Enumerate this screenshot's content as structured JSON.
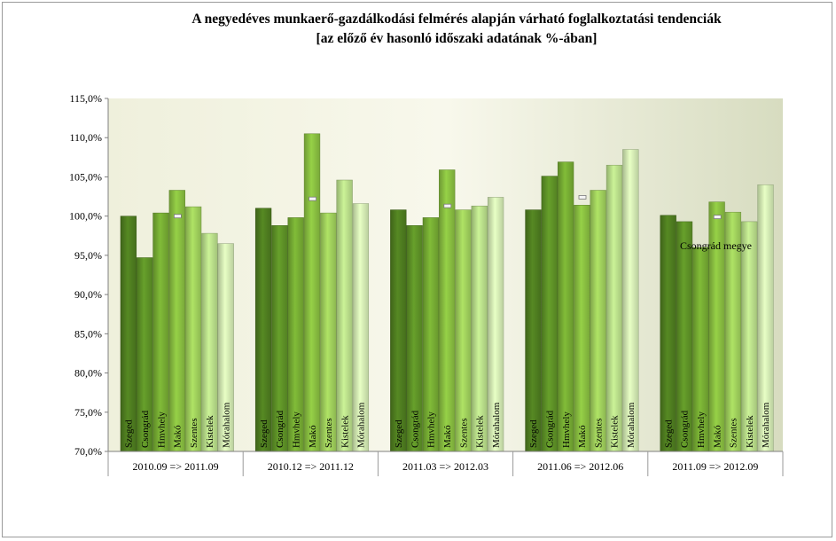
{
  "chart_data": {
    "type": "bar",
    "title_line1": "A negyedéves munkaerő-gazdálkodási felmérés alapján várható foglalkoztatási tendenciák",
    "title_line2": "[az előző év hasonló időszaki adatának %-ában]",
    "series_names": [
      "Szeged",
      "Csongrád",
      "Hmvhely",
      "Makó",
      "Szentes",
      "Kistelek",
      "Mórahalom"
    ],
    "groups": [
      "2010.09 => 2011.09",
      "2010.12 => 2011.12",
      "2011.03 => 2012.03",
      "2011.06 => 2012.06",
      "2011.09 => 2012.09"
    ],
    "values": [
      [
        100.0,
        94.7,
        100.4,
        103.3,
        101.2,
        97.8,
        96.5
      ],
      [
        101.0,
        98.8,
        99.8,
        110.5,
        100.4,
        104.6,
        101.6
      ],
      [
        100.8,
        98.8,
        99.8,
        105.9,
        100.8,
        101.3,
        102.4
      ],
      [
        100.8,
        105.1,
        106.9,
        101.4,
        103.3,
        106.5,
        108.5
      ],
      [
        100.1,
        99.3,
        96.0,
        101.8,
        100.5,
        99.3,
        104.0
      ]
    ],
    "county_average_label": "Csongrád megye",
    "county_average": [
      100.0,
      102.2,
      101.3,
      102.4,
      99.9
    ],
    "ylim": [
      70,
      115
    ],
    "y_ticks": [
      "70,0%",
      "75,0%",
      "80,0%",
      "85,0%",
      "90,0%",
      "95,0%",
      "100,0%",
      "105,0%",
      "110,0%",
      "115,0%"
    ],
    "colors": [
      "#4d7a1f",
      "#5c8f26",
      "#73a832",
      "#86bb3f",
      "#9ccb5a",
      "#b5d987",
      "#cfe6b0"
    ],
    "grid": false,
    "legend": "none"
  }
}
